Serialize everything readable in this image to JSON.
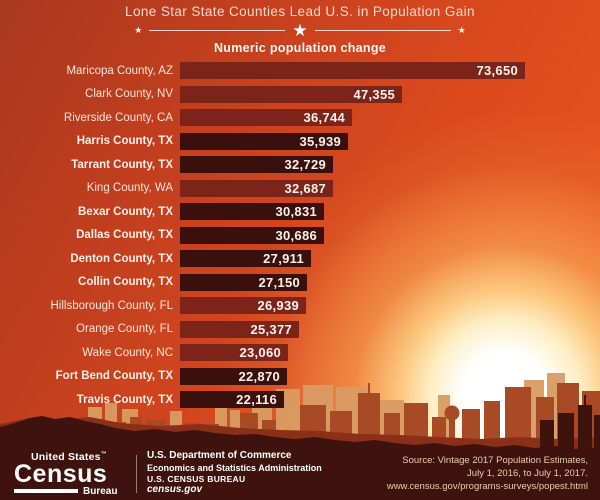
{
  "title": "Lone Star State Counties Lead U.S. in Population Gain",
  "subtitle": "Numeric population change",
  "chart_data": {
    "type": "bar",
    "orientation": "horizontal",
    "title": "Lone Star State Counties Lead U.S. in Population Gain",
    "subtitle": "Numeric population change",
    "categories": [
      "Maricopa County, AZ",
      "Clark County, NV",
      "Riverside County, CA",
      "Harris County, TX",
      "Tarrant County, TX",
      "King County, WA",
      "Bexar County, TX",
      "Dallas County, TX",
      "Denton County, TX",
      "Collin County, TX",
      "Hillsborough County, FL",
      "Orange County, FL",
      "Wake County, NC",
      "Fort Bend County, TX",
      "Travis County, TX"
    ],
    "values": [
      73650,
      47355,
      36744,
      35939,
      32729,
      32687,
      30831,
      30686,
      27911,
      27150,
      26939,
      25377,
      23060,
      22870,
      22116
    ],
    "value_labels": [
      "73,650",
      "47,355",
      "36,744",
      "35,939",
      "32,729",
      "32,687",
      "30,831",
      "30,686",
      "27,911",
      "27,150",
      "26,939",
      "25,377",
      "23,060",
      "22,870",
      "22,116"
    ],
    "xlim": [
      0,
      73650
    ],
    "grid": false,
    "legend": false,
    "highlight_suffix": ", TX",
    "colors": {
      "bar": "#7c231a",
      "bar_highlight": "#3a100c",
      "value_text": "#fdf2ea",
      "label_text": "#f6e3d8",
      "background_top": "#a93820",
      "background_main": "#e4511f",
      "sun": "#ffffff",
      "skyline_back": "#d99c63",
      "skyline_mid": "#a84a26",
      "skyline_front": "#3e130d"
    }
  },
  "icons": {
    "star": "★"
  },
  "footer": {
    "logo": {
      "top": "United States",
      "trademark": "™",
      "name": "Census",
      "unit": "Bureau"
    },
    "dept": [
      "U.S. Department of Commerce",
      "Economics and Statistics Administration",
      "U.S. CENSUS BUREAU",
      "census.gov"
    ],
    "source": [
      "Source: Vintage 2017 Population Estimates,",
      "July 1, 2016, to July 1, 2017.",
      "www.census.gov/programs-surveys/popest.html"
    ]
  }
}
